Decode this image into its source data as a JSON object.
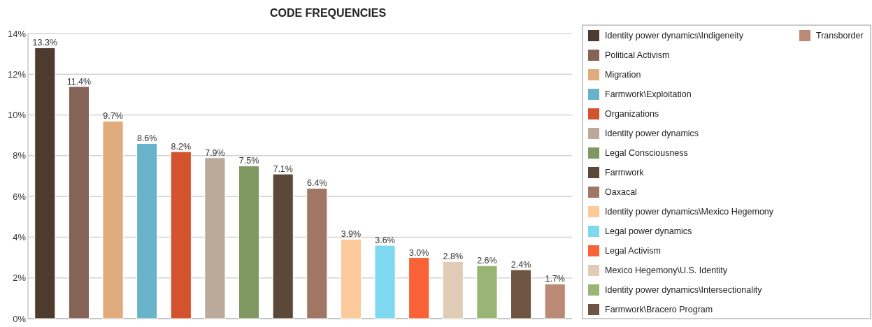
{
  "chart_data": {
    "type": "bar",
    "title": "CODE FREQUENCIES",
    "categories": [
      null,
      null,
      null,
      null,
      null,
      null,
      null,
      null,
      null,
      null,
      null,
      null,
      null,
      null,
      null,
      null
    ],
    "series": [
      {
        "name": "Identity power dynamics\\Indigeneity",
        "color": "#4d3b2f",
        "values": [
          13.3,
          null,
          null,
          null,
          null,
          null,
          null,
          null,
          null,
          null,
          null,
          null,
          null,
          null,
          null,
          null
        ],
        "value_labels": [
          "13.3%",
          null,
          null,
          null,
          null,
          null,
          null,
          null,
          null,
          null,
          null,
          null,
          null,
          null,
          null,
          null
        ]
      },
      {
        "name": "Political Activism",
        "color": "#856356",
        "values": [
          null,
          11.4,
          null,
          null,
          null,
          null,
          null,
          null,
          null,
          null,
          null,
          null,
          null,
          null,
          null,
          null
        ],
        "value_labels": [
          null,
          "11.4%",
          null,
          null,
          null,
          null,
          null,
          null,
          null,
          null,
          null,
          null,
          null,
          null,
          null,
          null
        ]
      },
      {
        "name": "Migration",
        "color": "#e0ac7e",
        "values": [
          null,
          null,
          9.7,
          null,
          null,
          null,
          null,
          null,
          null,
          null,
          null,
          null,
          null,
          null,
          null,
          null
        ],
        "value_labels": [
          null,
          null,
          "9.7%",
          null,
          null,
          null,
          null,
          null,
          null,
          null,
          null,
          null,
          null,
          null,
          null,
          null
        ]
      },
      {
        "name": "Farmwork\\Exploitation",
        "color": "#69b3ca",
        "values": [
          null,
          null,
          null,
          8.6,
          null,
          null,
          null,
          null,
          null,
          null,
          null,
          null,
          null,
          null,
          null,
          null
        ],
        "value_labels": [
          null,
          null,
          null,
          "8.6%",
          null,
          null,
          null,
          null,
          null,
          null,
          null,
          null,
          null,
          null,
          null,
          null
        ]
      },
      {
        "name": "Organizations",
        "color": "#d2532e",
        "values": [
          null,
          null,
          null,
          null,
          8.2,
          null,
          null,
          null,
          null,
          null,
          null,
          null,
          null,
          null,
          null,
          null
        ],
        "value_labels": [
          null,
          null,
          null,
          null,
          "8.2%",
          null,
          null,
          null,
          null,
          null,
          null,
          null,
          null,
          null,
          null,
          null
        ]
      },
      {
        "name": "Identity power dynamics",
        "color": "#bba999",
        "values": [
          null,
          null,
          null,
          null,
          null,
          7.9,
          null,
          null,
          null,
          null,
          null,
          null,
          null,
          null,
          null,
          null
        ],
        "value_labels": [
          null,
          null,
          null,
          null,
          null,
          "7.9%",
          null,
          null,
          null,
          null,
          null,
          null,
          null,
          null,
          null,
          null
        ]
      },
      {
        "name": "Legal Consciousness",
        "color": "#7f9760",
        "values": [
          null,
          null,
          null,
          null,
          null,
          null,
          7.5,
          null,
          null,
          null,
          null,
          null,
          null,
          null,
          null,
          null
        ],
        "value_labels": [
          null,
          null,
          null,
          null,
          null,
          null,
          "7.5%",
          null,
          null,
          null,
          null,
          null,
          null,
          null,
          null,
          null
        ]
      },
      {
        "name": "Farmwork",
        "color": "#5c4839",
        "values": [
          null,
          null,
          null,
          null,
          null,
          null,
          null,
          7.1,
          null,
          null,
          null,
          null,
          null,
          null,
          null,
          null
        ],
        "value_labels": [
          null,
          null,
          null,
          null,
          null,
          null,
          null,
          "7.1%",
          null,
          null,
          null,
          null,
          null,
          null,
          null,
          null
        ]
      },
      {
        "name": "Oaxacal",
        "color": "#a07765",
        "values": [
          null,
          null,
          null,
          null,
          null,
          null,
          null,
          null,
          6.4,
          null,
          null,
          null,
          null,
          null,
          null,
          null
        ],
        "value_labels": [
          null,
          null,
          null,
          null,
          null,
          null,
          null,
          null,
          "6.4%",
          null,
          null,
          null,
          null,
          null,
          null,
          null
        ]
      },
      {
        "name": "Identity power dynamics\\Mexico Hegemony",
        "color": "#fdca9c",
        "values": [
          null,
          null,
          null,
          null,
          null,
          null,
          null,
          null,
          null,
          3.9,
          null,
          null,
          null,
          null,
          null,
          null
        ],
        "value_labels": [
          null,
          null,
          null,
          null,
          null,
          null,
          null,
          null,
          null,
          "3.9%",
          null,
          null,
          null,
          null,
          null,
          null
        ]
      },
      {
        "name": "Legal power dynamics",
        "color": "#7dd8f0",
        "values": [
          null,
          null,
          null,
          null,
          null,
          null,
          null,
          null,
          null,
          null,
          3.6,
          null,
          null,
          null,
          null,
          null
        ],
        "value_labels": [
          null,
          null,
          null,
          null,
          null,
          null,
          null,
          null,
          null,
          null,
          "3.6%",
          null,
          null,
          null,
          null,
          null
        ]
      },
      {
        "name": "Legal Activism",
        "color": "#f86236",
        "values": [
          null,
          null,
          null,
          null,
          null,
          null,
          null,
          null,
          null,
          null,
          null,
          3.0,
          null,
          null,
          null,
          null
        ],
        "value_labels": [
          null,
          null,
          null,
          null,
          null,
          null,
          null,
          null,
          null,
          null,
          null,
          "3.0%",
          null,
          null,
          null,
          null
        ]
      },
      {
        "name": "Mexico Hegemony\\U.S.  Identity",
        "color": "#e0cbb6",
        "values": [
          null,
          null,
          null,
          null,
          null,
          null,
          null,
          null,
          null,
          null,
          null,
          null,
          2.8,
          null,
          null,
          null
        ],
        "value_labels": [
          null,
          null,
          null,
          null,
          null,
          null,
          null,
          null,
          null,
          null,
          null,
          null,
          "2.8%",
          null,
          null,
          null
        ]
      },
      {
        "name": "Identity power dynamics\\Intersectionality",
        "color": "#99b576",
        "values": [
          null,
          null,
          null,
          null,
          null,
          null,
          null,
          null,
          null,
          null,
          null,
          null,
          null,
          2.6,
          null,
          null
        ],
        "value_labels": [
          null,
          null,
          null,
          null,
          null,
          null,
          null,
          null,
          null,
          null,
          null,
          null,
          null,
          "2.6%",
          null,
          null
        ]
      },
      {
        "name": "Farmwork\\Bracero Program",
        "color": "#6e5443",
        "values": [
          null,
          null,
          null,
          null,
          null,
          null,
          null,
          null,
          null,
          null,
          null,
          null,
          null,
          null,
          2.4,
          null
        ],
        "value_labels": [
          null,
          null,
          null,
          null,
          null,
          null,
          null,
          null,
          null,
          null,
          null,
          null,
          null,
          null,
          "2.4%",
          null
        ]
      },
      {
        "name": "Transborder",
        "color": "#bb8a76",
        "values": [
          null,
          null,
          null,
          null,
          null,
          null,
          null,
          null,
          null,
          null,
          null,
          null,
          null,
          null,
          null,
          1.7
        ],
        "value_labels": [
          null,
          null,
          null,
          null,
          null,
          null,
          null,
          null,
          null,
          null,
          null,
          null,
          null,
          null,
          null,
          "1.7%"
        ]
      }
    ],
    "ylim": [
      0,
      14
    ],
    "yticks": [
      {
        "value": 0,
        "label": "0%"
      },
      {
        "value": 2,
        "label": "2%"
      },
      {
        "value": 4,
        "label": "4%"
      },
      {
        "value": 6,
        "label": "6%"
      },
      {
        "value": 8,
        "label": "8%"
      },
      {
        "value": 10,
        "label": "10%"
      },
      {
        "value": 12,
        "label": "12%"
      },
      {
        "value": 14,
        "label": "14%"
      }
    ],
    "grid": "y",
    "legend": "right"
  }
}
